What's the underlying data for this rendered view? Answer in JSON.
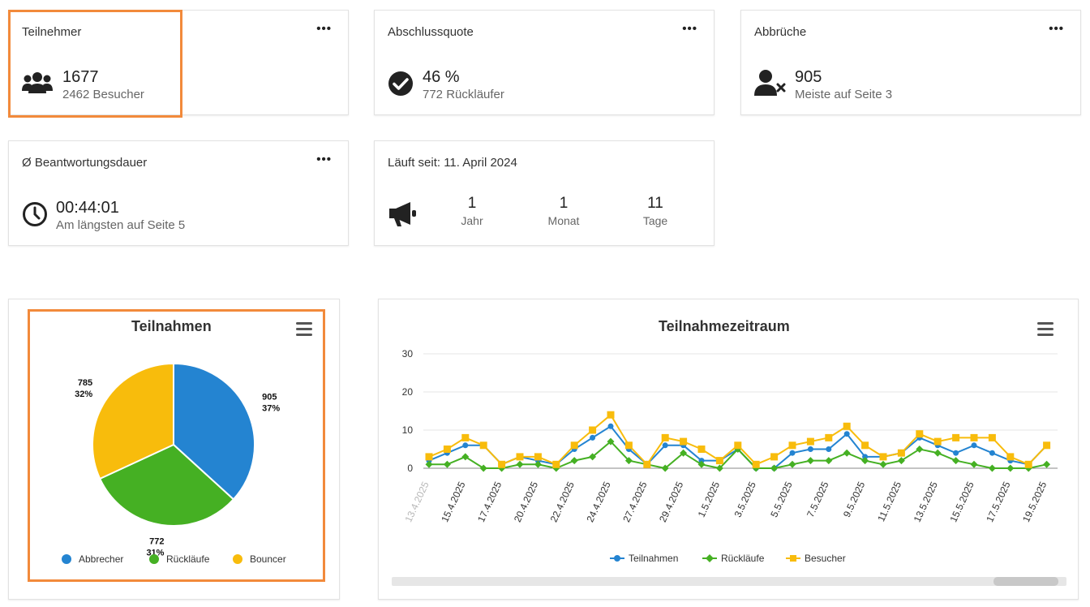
{
  "cards": {
    "teilnehmer": {
      "title": "Teilnehmer",
      "value": "1677",
      "sub": "2462 Besucher",
      "icon": "users-icon"
    },
    "abschlussquote": {
      "title": "Abschlussquote",
      "value": "46 %",
      "sub": "772 Rückläufer",
      "icon": "check-circle-icon"
    },
    "abbrueche": {
      "title": "Abbrüche",
      "value": "905",
      "sub": "Meiste auf Seite 3",
      "icon": "user-times-icon"
    },
    "dauer": {
      "title": "Ø Beantwortungsdauer",
      "value": "00:44:01",
      "sub": "Am längsten auf Seite 5",
      "icon": "clock-icon"
    },
    "laufzeit": {
      "title": "Läuft seit: 11. April 2024",
      "icon": "megaphone-icon",
      "columns": [
        {
          "value": "1",
          "unit": "Jahr"
        },
        {
          "value": "1",
          "unit": "Monat"
        },
        {
          "value": "11",
          "unit": "Tage"
        }
      ]
    }
  },
  "menu_dots": "•••",
  "colors": {
    "blue": "#2484d1",
    "green": "#45b023",
    "yellow": "#f8bc0c",
    "highlight": "#f28a3b"
  },
  "chart_data": [
    {
      "type": "pie",
      "title": "Teilnahmen",
      "categories": [
        "Abbrecher",
        "Rückläufe",
        "Bouncer"
      ],
      "values": [
        905,
        772,
        785
      ],
      "percent_labels": [
        "37%",
        "31%",
        "32%"
      ],
      "colors": [
        "#2484d1",
        "#45b023",
        "#f8bc0c"
      ],
      "legend_position": "bottom"
    },
    {
      "type": "line",
      "title": "Teilnahmezeitraum",
      "y_ticks": [
        "0",
        "10",
        "20",
        "30"
      ],
      "ylim": [
        0,
        30
      ],
      "x_tick_labels": [
        "13.4.2025",
        "15.4.2025",
        "17.4.2025",
        "20.4.2025",
        "22.4.2025",
        "24.4.2025",
        "27.4.2025",
        "29.4.2025",
        "1.5.2025",
        "3.5.2025",
        "5.5.2025",
        "7.5.2025",
        "9.5.2025",
        "11.5.2025",
        "13.5.2025",
        "15.5.2025",
        "17.5.2025",
        "19.5.2025"
      ],
      "series": [
        {
          "name": "Teilnahmen",
          "color": "#2484d1",
          "marker": "circle",
          "values": [
            2,
            4,
            6,
            6,
            1,
            3,
            2,
            1,
            5,
            8,
            11,
            5,
            1,
            6,
            6,
            2,
            2,
            5,
            0,
            0,
            4,
            5,
            5,
            9,
            3,
            3,
            4,
            8,
            6,
            4,
            6,
            4,
            2,
            1,
            6
          ]
        },
        {
          "name": "Rückläufe",
          "color": "#45b023",
          "marker": "diamond",
          "values": [
            1,
            1,
            3,
            0,
            0,
            1,
            1,
            0,
            2,
            3,
            7,
            2,
            1,
            0,
            4,
            1,
            0,
            5,
            0,
            0,
            1,
            2,
            2,
            4,
            2,
            1,
            2,
            5,
            4,
            2,
            1,
            0,
            0,
            0,
            1
          ]
        },
        {
          "name": "Besucher",
          "color": "#f8bc0c",
          "marker": "square",
          "values": [
            3,
            5,
            8,
            6,
            1,
            3,
            3,
            1,
            6,
            10,
            14,
            6,
            1,
            8,
            7,
            5,
            2,
            6,
            1,
            3,
            6,
            7,
            8,
            11,
            6,
            3,
            4,
            9,
            7,
            8,
            8,
            8,
            3,
            1,
            6
          ]
        }
      ],
      "legend_position": "bottom"
    }
  ]
}
